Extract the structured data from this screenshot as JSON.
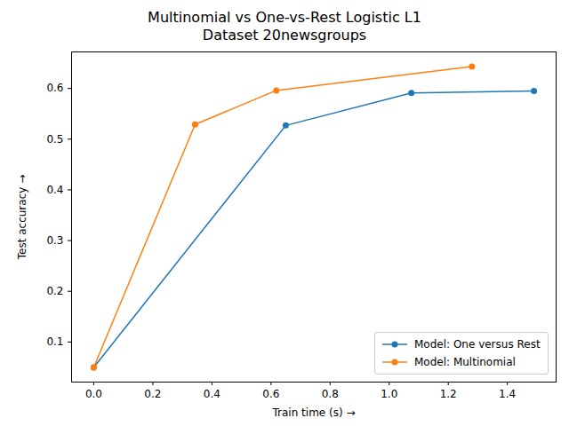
{
  "chart_data": {
    "type": "line",
    "title": "Multinomial vs One-vs-Rest Logistic L1",
    "subtitle": "Dataset 20newsgroups",
    "x_label": "Train time (s)",
    "y_label": "Test accuracy",
    "series": [
      {
        "name": "Model: One versus Rest",
        "color": "#1f77b4",
        "marker": "circle",
        "x": [
          0,
          0.65,
          1.075,
          1.49
        ],
        "values": [
          0.05,
          0.527,
          0.591,
          0.595
        ]
      },
      {
        "name": "Model: Multinomial",
        "color": "#ff7f0e",
        "marker": "circle",
        "x": [
          0,
          0.343,
          0.618,
          1.28
        ],
        "values": [
          0.05,
          0.529,
          0.596,
          0.643
        ]
      }
    ],
    "xlim": [
      -0.075,
      1.565
    ],
    "ylim": [
      0.021,
      0.672
    ],
    "xticks": [
      {
        "value": 0,
        "label": "0.0"
      },
      {
        "value": 0.2,
        "label": "0.2"
      },
      {
        "value": 0.4,
        "label": "0.4"
      },
      {
        "value": 0.6,
        "label": "0.6"
      },
      {
        "value": 0.8,
        "label": "0.8"
      },
      {
        "value": 1.0,
        "label": "1.0"
      },
      {
        "value": 1.2,
        "label": "1.2"
      },
      {
        "value": 1.4,
        "label": "1.4"
      }
    ],
    "yticks": [
      0.1,
      0.2,
      0.3,
      0.4,
      0.5,
      0.6
    ],
    "grid": false,
    "legend": "lower right"
  }
}
